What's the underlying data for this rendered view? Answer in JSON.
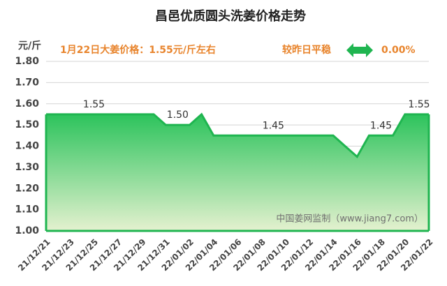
{
  "chart_data": {
    "type": "area",
    "title": "昌邑优质圆头洗姜价格走势",
    "ylabel": "元/斤",
    "annotations": [
      "1月22日大姜价格：1.55元/斤左右",
      "较昨日平稳",
      "0.00%",
      "中国姜网监制（www.jiang7.com）"
    ],
    "categories": [
      "21/12/21",
      null,
      "21/12/23",
      null,
      "21/12/25",
      null,
      "21/12/27",
      null,
      "21/12/29",
      null,
      "21/12/31",
      null,
      "22/01/02",
      null,
      "22/01/04",
      null,
      "22/01/06",
      null,
      "22/01/08",
      null,
      "22/01/10",
      null,
      "22/01/12",
      null,
      "22/01/14",
      null,
      "22/01/16",
      null,
      "22/01/18",
      null,
      "22/01/20",
      null,
      "22/01/22"
    ],
    "values": [
      1.55,
      1.55,
      1.55,
      1.55,
      1.55,
      1.55,
      1.55,
      1.55,
      1.55,
      1.55,
      1.5,
      1.5,
      1.5,
      1.55,
      1.45,
      1.45,
      1.45,
      1.45,
      1.45,
      1.45,
      1.45,
      1.45,
      1.45,
      1.45,
      1.45,
      1.4,
      1.35,
      1.45,
      1.45,
      1.45,
      1.55,
      1.55,
      1.55
    ],
    "value_labels": [
      null,
      null,
      null,
      null,
      "1.55",
      null,
      null,
      null,
      null,
      null,
      null,
      "1.50",
      null,
      null,
      null,
      null,
      null,
      null,
      null,
      "1.45",
      null,
      null,
      null,
      null,
      null,
      null,
      null,
      null,
      "1.45",
      null,
      null,
      null,
      "1.55"
    ],
    "color": "#1fb550",
    "ylim": [
      1.0,
      1.8
    ],
    "yticks": [
      {
        "value": 1.0,
        "label": "1.00"
      },
      {
        "value": 1.1,
        "label": "1.10"
      },
      {
        "value": 1.2,
        "label": "1.20"
      },
      {
        "value": 1.3,
        "label": "1.30"
      },
      {
        "value": 1.4,
        "label": "1.40"
      },
      {
        "value": 1.5,
        "label": "1.50"
      },
      {
        "value": 1.6,
        "label": "1.60"
      },
      {
        "value": 1.7,
        "label": "1.70"
      },
      {
        "value": 1.8,
        "label": "1.80"
      }
    ],
    "grid": true
  }
}
